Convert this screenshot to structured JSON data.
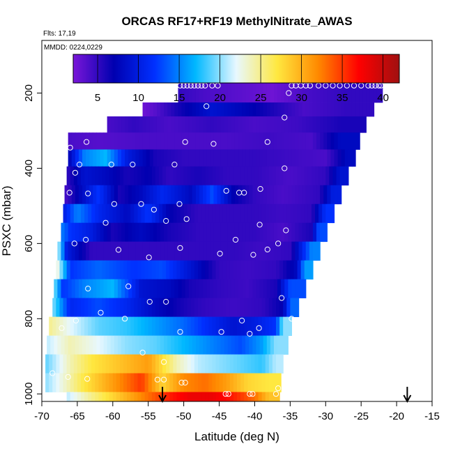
{
  "chart_data": {
    "type": "heatmap",
    "title": "ORCAS RF17+RF19 MethylNitrate_AWAS",
    "flights_label": "Flts: 17,19",
    "dates_label": "MMDD: 0224,0229",
    "xlabel": "Latitude (deg N)",
    "ylabel": "PSXC (mbar)",
    "xlim": [
      -70,
      -15
    ],
    "ylim": [
      1020,
      60
    ],
    "x_ticks": [
      -70,
      -65,
      -60,
      -55,
      -50,
      -45,
      -40,
      -35,
      -30,
      -25,
      -20,
      -15
    ],
    "y_ticks": [
      200,
      400,
      600,
      800,
      1000
    ],
    "colorbar": {
      "min": 2,
      "max": 42,
      "ticks": [
        5,
        10,
        15,
        20,
        25,
        30,
        35,
        40
      ],
      "colors": [
        "#7a16d8",
        "#0000b0",
        "#0030ff",
        "#00b8ff",
        "#e8f8ff",
        "#ffe840",
        "#ff8a00",
        "#ff0000",
        "#a01010"
      ]
    },
    "arrows_at_latitude": [
      -53,
      -18.5
    ],
    "rows": [
      {
        "p_top": 170,
        "p_bot": 225,
        "x0": -50.8,
        "x1": -22.0,
        "segments": [
          [
            -50.8,
            5
          ],
          [
            -47,
            4
          ],
          [
            -40,
            3
          ],
          [
            -37.5,
            2.5
          ],
          [
            -33,
            4
          ],
          [
            -27,
            5
          ]
        ]
      },
      {
        "p_top": 225,
        "p_bot": 262,
        "x0": -55.8,
        "x1": -23.2,
        "segments": [
          [
            -55.8,
            2.5
          ],
          [
            -54,
            3.5
          ],
          [
            -51,
            6
          ],
          [
            -46,
            9
          ],
          [
            -40,
            7
          ],
          [
            -33,
            4
          ],
          [
            -27,
            5
          ]
        ]
      },
      {
        "p_top": 262,
        "p_bot": 305,
        "x0": -60.8,
        "x1": -24.3,
        "segments": [
          [
            -60.8,
            4
          ],
          [
            -57,
            5
          ],
          [
            -52,
            4
          ],
          [
            -46,
            5
          ],
          [
            -40,
            4
          ],
          [
            -34,
            4.5
          ],
          [
            -28,
            6
          ]
        ]
      },
      {
        "p_top": 305,
        "p_bot": 350,
        "x0": -66.3,
        "x1": -25.2,
        "segments": [
          [
            -66.3,
            4
          ],
          [
            -62,
            3.5
          ],
          [
            -56,
            4
          ],
          [
            -50,
            4
          ],
          [
            -44,
            4
          ],
          [
            -38,
            4.5
          ],
          [
            -32,
            4
          ],
          [
            -28,
            8
          ]
        ]
      },
      {
        "p_top": 350,
        "p_bot": 395,
        "x0": -66.3,
        "x1": -25.8,
        "segments": [
          [
            -66.3,
            7
          ],
          [
            -64,
            15
          ],
          [
            -61,
            17
          ],
          [
            -58,
            10
          ],
          [
            -54,
            6
          ],
          [
            -50,
            5
          ],
          [
            -45,
            5
          ],
          [
            -40,
            5
          ],
          [
            -35,
            4.5
          ],
          [
            -30,
            4
          ],
          [
            -27,
            8
          ]
        ]
      },
      {
        "p_top": 395,
        "p_bot": 445,
        "x0": -66.5,
        "x1": -26.8,
        "segments": [
          [
            -66.5,
            5
          ],
          [
            -64,
            9
          ],
          [
            -61,
            8
          ],
          [
            -58,
            6
          ],
          [
            -55,
            7
          ],
          [
            -52,
            5
          ],
          [
            -48,
            6
          ],
          [
            -44,
            5
          ],
          [
            -40,
            5
          ],
          [
            -35,
            4
          ],
          [
            -30,
            5
          ],
          [
            -28,
            9
          ]
        ]
      },
      {
        "p_top": 445,
        "p_bot": 495,
        "x0": -66.8,
        "x1": -27.8,
        "segments": [
          [
            -66.8,
            4
          ],
          [
            -65,
            7
          ],
          [
            -62,
            12
          ],
          [
            -59,
            6
          ],
          [
            -56,
            8
          ],
          [
            -53,
            11
          ],
          [
            -49,
            8
          ],
          [
            -46,
            13
          ],
          [
            -43,
            7
          ],
          [
            -40,
            5
          ],
          [
            -36,
            4
          ],
          [
            -31,
            5
          ],
          [
            -29,
            10
          ]
        ]
      },
      {
        "p_top": 495,
        "p_bot": 545,
        "x0": -67.0,
        "x1": -28.8,
        "segments": [
          [
            -67.0,
            10
          ],
          [
            -65,
            15
          ],
          [
            -62,
            11
          ],
          [
            -58,
            8
          ],
          [
            -55,
            12
          ],
          [
            -52,
            7
          ],
          [
            -48,
            5
          ],
          [
            -44,
            5
          ],
          [
            -40,
            5
          ],
          [
            -36,
            4.5
          ],
          [
            -32,
            5
          ],
          [
            -30,
            12
          ]
        ]
      },
      {
        "p_top": 545,
        "p_bot": 595,
        "x0": -67.3,
        "x1": -29.8,
        "segments": [
          [
            -67.3,
            15
          ],
          [
            -66,
            12
          ],
          [
            -63,
            10
          ],
          [
            -60,
            6
          ],
          [
            -56,
            8
          ],
          [
            -52,
            6
          ],
          [
            -48,
            5
          ],
          [
            -44,
            5
          ],
          [
            -40,
            5
          ],
          [
            -36,
            4
          ],
          [
            -32,
            6
          ],
          [
            -31,
            13
          ]
        ]
      },
      {
        "p_top": 595,
        "p_bot": 645,
        "x0": -67.8,
        "x1": -30.8,
        "segments": [
          [
            -67.8,
            22
          ],
          [
            -66.5,
            10
          ],
          [
            -63,
            5
          ],
          [
            -59,
            5
          ],
          [
            -55,
            5
          ],
          [
            -51,
            5
          ],
          [
            -47,
            5
          ],
          [
            -43,
            5
          ],
          [
            -39,
            4.5
          ],
          [
            -35,
            5
          ],
          [
            -32,
            15
          ]
        ]
      },
      {
        "p_top": 645,
        "p_bot": 695,
        "x0": -68.0,
        "x1": -31.8,
        "segments": [
          [
            -68.0,
            24
          ],
          [
            -66,
            12
          ],
          [
            -62,
            14
          ],
          [
            -57,
            12
          ],
          [
            -53,
            13
          ],
          [
            -48,
            8
          ],
          [
            -45,
            5
          ],
          [
            -41,
            4.5
          ],
          [
            -37,
            5
          ],
          [
            -34,
            8
          ],
          [
            -33,
            16
          ]
        ]
      },
      {
        "p_top": 695,
        "p_bot": 745,
        "x0": -68.3,
        "x1": -32.8,
        "segments": [
          [
            -68.3,
            20
          ],
          [
            -67,
            12
          ],
          [
            -64,
            15
          ],
          [
            -60,
            17
          ],
          [
            -56,
            9
          ],
          [
            -52,
            8
          ],
          [
            -49,
            6
          ],
          [
            -45,
            5
          ],
          [
            -41,
            4.5
          ],
          [
            -37,
            6
          ],
          [
            -35,
            13
          ]
        ]
      },
      {
        "p_top": 745,
        "p_bot": 795,
        "x0": -68.5,
        "x1": -33.8,
        "segments": [
          [
            -68.5,
            20
          ],
          [
            -66,
            11
          ],
          [
            -62,
            13
          ],
          [
            -58,
            11
          ],
          [
            -54,
            8
          ],
          [
            -50,
            6
          ],
          [
            -47,
            5
          ],
          [
            -43,
            4.5
          ],
          [
            -39,
            5
          ],
          [
            -36,
            7
          ],
          [
            -35,
            14
          ]
        ]
      },
      {
        "p_top": 795,
        "p_bot": 845,
        "x0": -69.0,
        "x1": -34.8,
        "segments": [
          [
            -69.0,
            25
          ],
          [
            -66,
            22
          ],
          [
            -62,
            19
          ],
          [
            -58,
            18
          ],
          [
            -54,
            16
          ],
          [
            -50,
            14
          ],
          [
            -46,
            11
          ],
          [
            -43,
            9
          ],
          [
            -40,
            10
          ],
          [
            -37,
            12
          ],
          [
            -36,
            20
          ]
        ]
      },
      {
        "p_top": 845,
        "p_bot": 895,
        "x0": -69.3,
        "x1": -35.3,
        "segments": [
          [
            -69.3,
            21
          ],
          [
            -66,
            24
          ],
          [
            -62,
            22
          ],
          [
            -58,
            20
          ],
          [
            -54,
            19
          ],
          [
            -50,
            17
          ],
          [
            -46,
            15
          ],
          [
            -42,
            13
          ],
          [
            -39,
            16
          ],
          [
            -37,
            20
          ]
        ]
      },
      {
        "p_top": 895,
        "p_bot": 945,
        "x0": -69.5,
        "x1": -36.0,
        "segments": [
          [
            -69.5,
            19
          ],
          [
            -66,
            24
          ],
          [
            -63,
            27
          ],
          [
            -59,
            29
          ],
          [
            -55,
            31
          ],
          [
            -51,
            24
          ],
          [
            -48,
            21
          ],
          [
            -45,
            20
          ],
          [
            -42,
            19
          ],
          [
            -39,
            18
          ],
          [
            -37,
            21
          ]
        ]
      },
      {
        "p_top": 945,
        "p_bot": 995,
        "x0": -69.5,
        "x1": -36.3,
        "segments": [
          [
            -69.5,
            20
          ],
          [
            -67,
            23
          ],
          [
            -64,
            27
          ],
          [
            -60,
            31
          ],
          [
            -56,
            35
          ],
          [
            -53,
            28
          ],
          [
            -50,
            32
          ],
          [
            -47,
            33
          ],
          [
            -44,
            31
          ],
          [
            -41,
            28
          ],
          [
            -38,
            27
          ]
        ]
      },
      {
        "p_top": 995,
        "p_bot": 1020,
        "x0": -66.5,
        "x1": -36.5,
        "segments": [
          [
            -66.5,
            21
          ],
          [
            -63,
            25
          ],
          [
            -59,
            29
          ],
          [
            -55,
            33
          ],
          [
            -52,
            36
          ],
          [
            -49,
            38
          ],
          [
            -46,
            38
          ],
          [
            -43,
            36
          ],
          [
            -40,
            33
          ],
          [
            -38,
            29
          ]
        ]
      }
    ],
    "samples": [
      [
        -50.5,
        180
      ],
      [
        -50,
        180
      ],
      [
        -49.5,
        180
      ],
      [
        -49,
        180
      ],
      [
        -48.5,
        180
      ],
      [
        -48,
        180
      ],
      [
        -47.5,
        180
      ],
      [
        -47,
        180
      ],
      [
        -46,
        180
      ],
      [
        -45.2,
        180
      ],
      [
        -35.2,
        200
      ],
      [
        -34.8,
        180
      ],
      [
        -34.2,
        180
      ],
      [
        -33.5,
        180
      ],
      [
        -32.8,
        180
      ],
      [
        -32.2,
        180
      ],
      [
        -31,
        180
      ],
      [
        -30,
        180
      ],
      [
        -29,
        180
      ],
      [
        -28,
        180
      ],
      [
        -27,
        180
      ],
      [
        -26,
        180
      ],
      [
        -25,
        180
      ],
      [
        -24,
        180
      ],
      [
        -23.5,
        180
      ],
      [
        -23,
        180
      ],
      [
        -22.5,
        180
      ],
      [
        -22.2,
        180
      ],
      [
        -46.8,
        235
      ],
      [
        -35.8,
        265
      ],
      [
        -63.7,
        330
      ],
      [
        -66,
        345
      ],
      [
        -49.8,
        330
      ],
      [
        -45.8,
        335
      ],
      [
        -38.2,
        330
      ],
      [
        -64.7,
        390
      ],
      [
        -60.2,
        390
      ],
      [
        -57.2,
        390
      ],
      [
        -51.3,
        390
      ],
      [
        -65.3,
        412
      ],
      [
        -35.8,
        400
      ],
      [
        -44,
        460
      ],
      [
        -42.2,
        465
      ],
      [
        -41.5,
        465
      ],
      [
        -39.2,
        455
      ],
      [
        -63.5,
        467
      ],
      [
        -59.8,
        495
      ],
      [
        -56,
        495
      ],
      [
        -54.2,
        510
      ],
      [
        -50.6,
        495
      ],
      [
        -61,
        545
      ],
      [
        -52.5,
        540
      ],
      [
        -49.6,
        535
      ],
      [
        -39.3,
        550
      ],
      [
        -35.6,
        565
      ],
      [
        -66.1,
        465
      ],
      [
        -63.8,
        590
      ],
      [
        -42.7,
        590
      ],
      [
        -40.2,
        630
      ],
      [
        -44.9,
        627
      ],
      [
        -38.2,
        616
      ],
      [
        -36.7,
        600
      ],
      [
        -50.5,
        612
      ],
      [
        -54.9,
        637
      ],
      [
        -59.2,
        617
      ],
      [
        -65.4,
        600
      ],
      [
        -63.5,
        720
      ],
      [
        -57.8,
        714
      ],
      [
        -52.5,
        755
      ],
      [
        -54.8,
        755
      ],
      [
        -36.2,
        745
      ],
      [
        -34.8,
        800
      ],
      [
        -41.8,
        805
      ],
      [
        -65.2,
        805
      ],
      [
        -67.2,
        825
      ],
      [
        -61.7,
        784
      ],
      [
        -58.3,
        800
      ],
      [
        -50.5,
        835
      ],
      [
        -44.7,
        835
      ],
      [
        -40.7,
        840
      ],
      [
        -39.4,
        825
      ],
      [
        -55.8,
        890
      ],
      [
        -52.8,
        915
      ],
      [
        -68.5,
        945
      ],
      [
        -66.3,
        955
      ],
      [
        -63.6,
        960
      ],
      [
        -53.7,
        962
      ],
      [
        -52.8,
        962
      ],
      [
        -50.3,
        970
      ],
      [
        -49.8,
        970
      ],
      [
        -44.1,
        1000
      ],
      [
        -43.7,
        1000
      ],
      [
        -40.7,
        1000
      ],
      [
        -40.3,
        1000
      ],
      [
        -36.7,
        985
      ],
      [
        -37,
        1000
      ]
    ]
  }
}
